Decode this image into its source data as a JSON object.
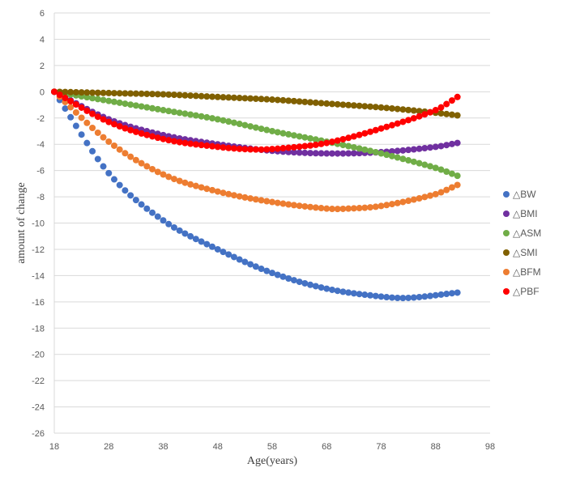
{
  "chart_data": {
    "type": "scatter",
    "title": "",
    "xlabel": "Age(years)",
    "ylabel": "amount of change",
    "xlim": [
      18,
      98
    ],
    "ylim": [
      -26,
      6
    ],
    "x_ticks": [
      18,
      28,
      38,
      48,
      58,
      68,
      78,
      88,
      98
    ],
    "y_ticks": [
      6,
      4,
      2,
      0,
      -2,
      -4,
      -6,
      -8,
      -10,
      -12,
      -14,
      -16,
      -18,
      -20,
      -22,
      -24,
      -26
    ],
    "grid": "horizontal",
    "legend_position": "right",
    "x_start": 18,
    "x_end": 92,
    "x_step": 1,
    "series": [
      {
        "name": "△BW",
        "color": "#4472C4",
        "anchors": [
          [
            18,
            0
          ],
          [
            28,
            -6.2
          ],
          [
            38,
            -9.8
          ],
          [
            48,
            -12.0
          ],
          [
            58,
            -13.8
          ],
          [
            68,
            -15.0
          ],
          [
            78,
            -15.6
          ],
          [
            83,
            -15.7
          ],
          [
            92,
            -15.3
          ]
        ]
      },
      {
        "name": "△BMI",
        "color": "#7030A0",
        "anchors": [
          [
            18,
            0
          ],
          [
            28,
            -2.1
          ],
          [
            38,
            -3.3
          ],
          [
            48,
            -4.0
          ],
          [
            58,
            -4.5
          ],
          [
            68,
            -4.7
          ],
          [
            78,
            -4.6
          ],
          [
            88,
            -4.2
          ],
          [
            92,
            -3.9
          ]
        ]
      },
      {
        "name": "△ASM",
        "color": "#70AD47",
        "anchors": [
          [
            18,
            0
          ],
          [
            28,
            -0.7
          ],
          [
            38,
            -1.4
          ],
          [
            48,
            -2.1
          ],
          [
            58,
            -3.0
          ],
          [
            68,
            -3.8
          ],
          [
            78,
            -4.7
          ],
          [
            88,
            -5.8
          ],
          [
            92,
            -6.4
          ]
        ]
      },
      {
        "name": "△SMI",
        "color": "#806000",
        "anchors": [
          [
            18,
            0
          ],
          [
            28,
            -0.1
          ],
          [
            38,
            -0.2
          ],
          [
            48,
            -0.4
          ],
          [
            58,
            -0.6
          ],
          [
            68,
            -0.9
          ],
          [
            78,
            -1.2
          ],
          [
            88,
            -1.6
          ],
          [
            92,
            -1.8
          ]
        ]
      },
      {
        "name": "△BFM",
        "color": "#ED7D31",
        "anchors": [
          [
            18,
            0
          ],
          [
            28,
            -3.8
          ],
          [
            38,
            -6.3
          ],
          [
            48,
            -7.6
          ],
          [
            58,
            -8.4
          ],
          [
            68,
            -8.9
          ],
          [
            72,
            -8.9
          ],
          [
            78,
            -8.7
          ],
          [
            88,
            -7.8
          ],
          [
            92,
            -7.1
          ]
        ]
      },
      {
        "name": "△PBF",
        "color": "#FF0000",
        "anchors": [
          [
            18,
            0
          ],
          [
            28,
            -2.3
          ],
          [
            38,
            -3.6
          ],
          [
            48,
            -4.2
          ],
          [
            55,
            -4.4
          ],
          [
            60,
            -4.3
          ],
          [
            68,
            -3.9
          ],
          [
            78,
            -2.8
          ],
          [
            88,
            -1.4
          ],
          [
            92,
            -0.4
          ]
        ]
      }
    ]
  }
}
